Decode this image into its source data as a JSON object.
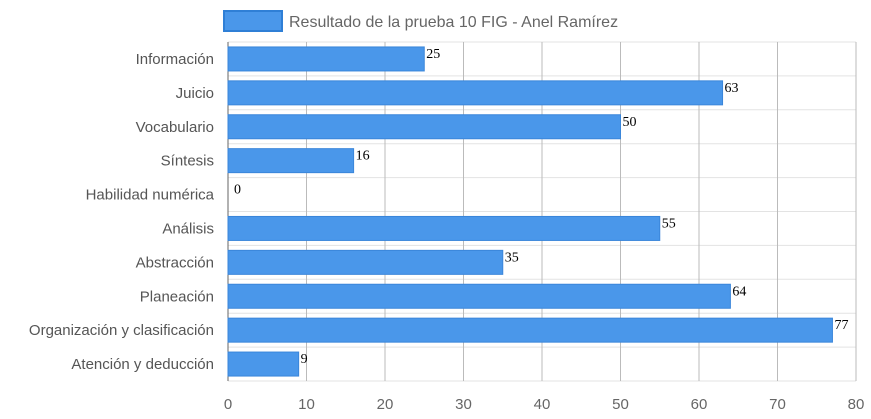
{
  "chart_data": {
    "type": "bar",
    "orientation": "horizontal",
    "categories": [
      "Información",
      "Juicio",
      "Vocabulario",
      "Síntesis",
      "Habilidad numérica",
      "Análisis",
      "Abstracción",
      "Planeación",
      "Organización y clasificación",
      "Atención y deducción"
    ],
    "series": [
      {
        "name": "Resultado de la prueba 10 FIG - Anel Ramírez",
        "values": [
          25,
          63,
          50,
          16,
          0,
          55,
          35,
          64,
          77,
          9
        ]
      }
    ],
    "xlim": [
      0,
      80
    ],
    "x_ticks": [
      0,
      10,
      20,
      30,
      40,
      50,
      60,
      70,
      80
    ],
    "grid": true,
    "legend_position": "top",
    "colors": {
      "bar": "#4a97ea",
      "bar_border": "#3a86da",
      "grid": "#e3e3e3",
      "vgrid": "#bbbbbb",
      "axis": "#666666"
    }
  }
}
